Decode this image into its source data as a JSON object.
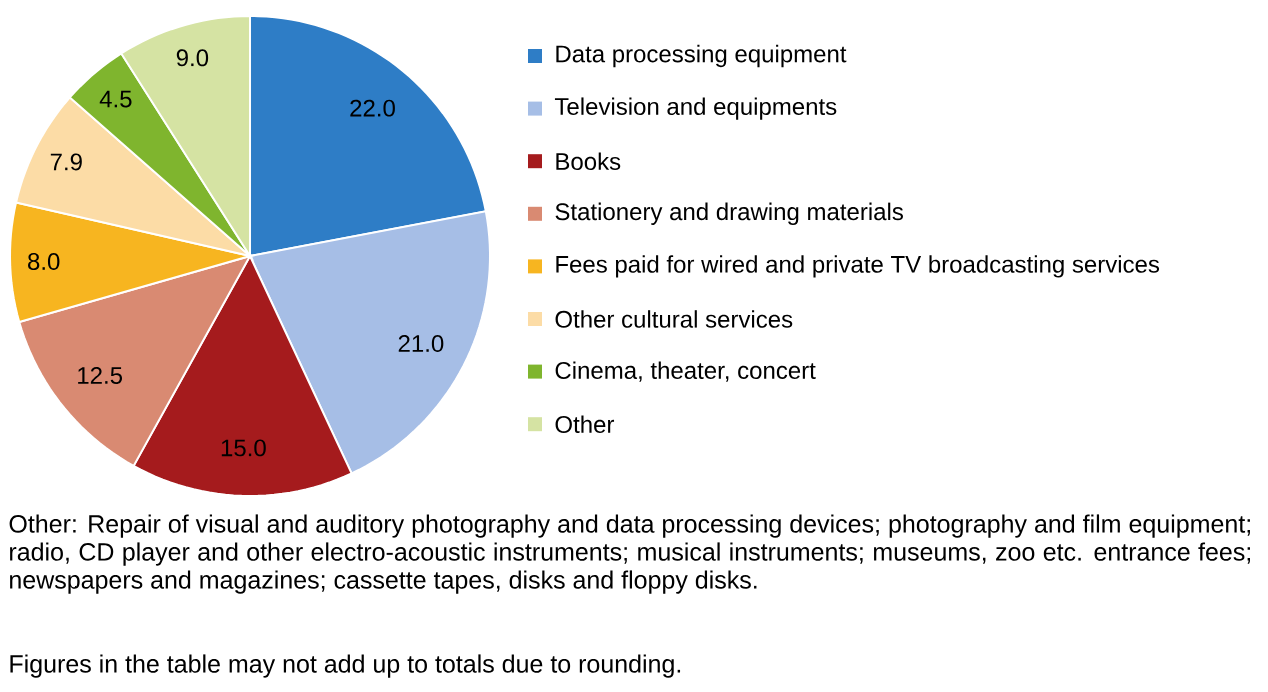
{
  "chart_data": {
    "type": "pie",
    "categories": [
      "Data processing equipment",
      "Television and equipments",
      "Books",
      "Stationery and drawing materials",
      "Fees paid for wired and  private TV broadcasting services",
      "Other cultural services",
      "Cinema, theater, concert",
      "Other"
    ],
    "values": [
      22.0,
      21.0,
      15.0,
      12.5,
      8.0,
      7.9,
      4.5,
      9.0
    ],
    "value_labels": [
      "22.0",
      "21.0",
      "15.0",
      "12.5",
      "8.0",
      "7.9",
      "4.5",
      "9.0"
    ],
    "colors": [
      "#2e7dc6",
      "#a6bee6",
      "#a51b1d",
      "#d98a72",
      "#f7b520",
      "#fcdca6",
      "#7fb52e",
      "#d5e3a3"
    ],
    "legend": "right",
    "annotations": [
      "Other: Repair of visual and auditory photography and data processing devices; photography and film equipment; radio, CD player and other electro-acoustic instruments; musical instruments; museums, zoo etc. entrance fees; newspapers and magazines; cassette tapes, disks and floppy disks.",
      "Figures in the table may not add up to totals due to rounding."
    ]
  }
}
